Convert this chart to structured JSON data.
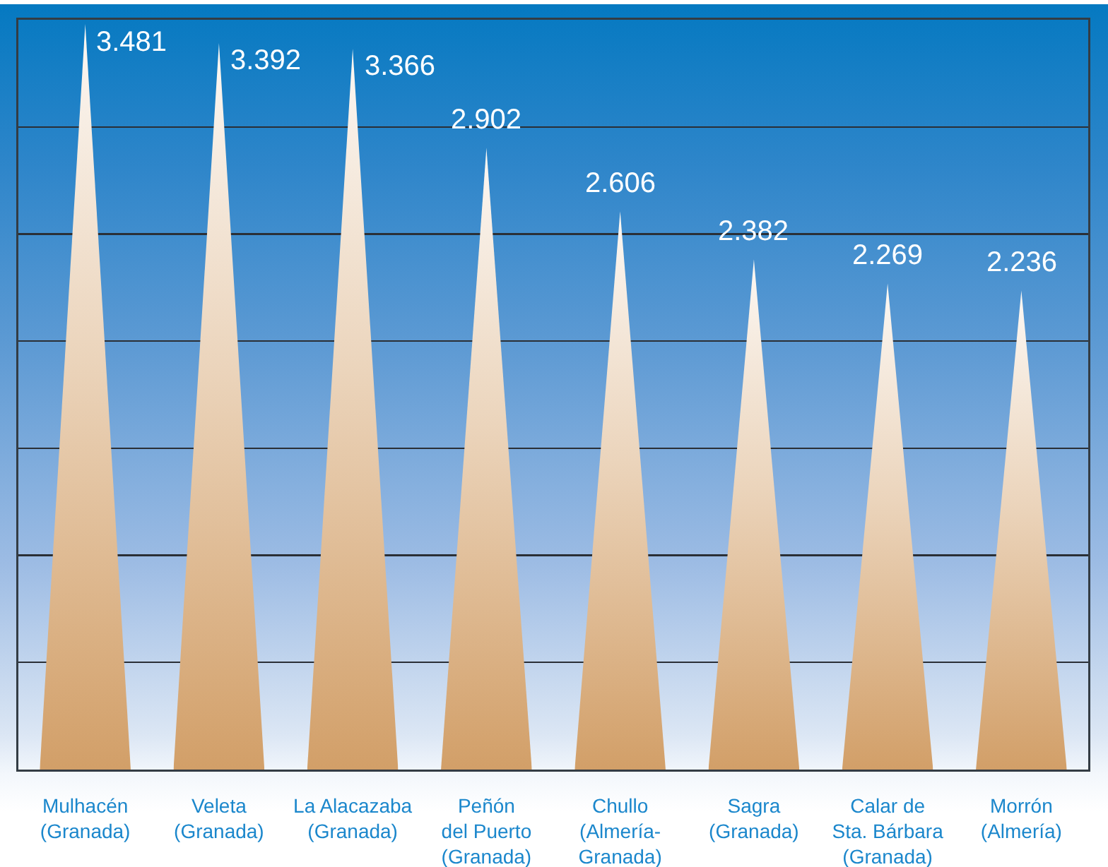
{
  "chart_data": {
    "type": "bar",
    "categories": [
      "Mulhacén\n(Granada)",
      "Veleta\n(Granada)",
      "La Alacazaba\n(Granada)",
      "Peñón\ndel Puerto\n(Granada)",
      "Chullo\n(Almería-\nGranada)",
      "Sagra\n(Granada)",
      "Calar de\nSta. Bárbara\n(Granada)",
      "Morrón\n(Almería)"
    ],
    "values": [
      3.481,
      3.392,
      3.366,
      2.902,
      2.606,
      2.382,
      2.269,
      2.236
    ],
    "data_labels": true,
    "color": "#d29f68",
    "ylim": [
      0,
      3.5
    ],
    "yticks": [
      {
        "value": 0.5,
        "label": null
      },
      {
        "value": 1,
        "label": null
      },
      {
        "value": 1.5,
        "label": null
      },
      {
        "value": 2,
        "label": null
      },
      {
        "value": 2.5,
        "label": null
      },
      {
        "value": 3,
        "label": null
      }
    ],
    "grid": "y",
    "tick_labels": "x"
  }
}
